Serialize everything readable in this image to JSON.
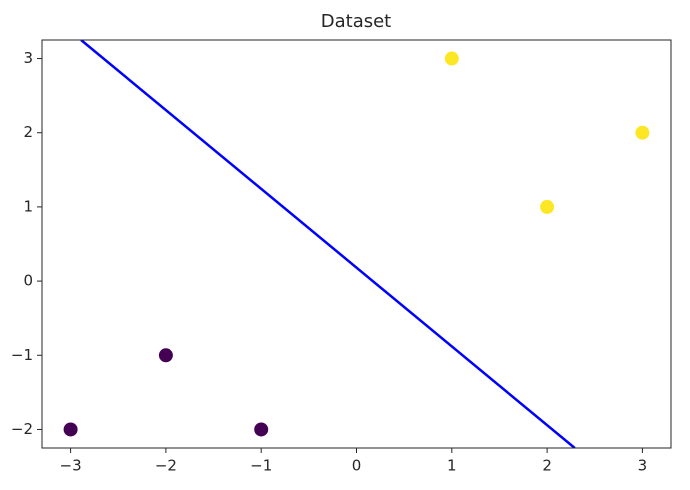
{
  "chart_data": {
    "type": "scatter",
    "title": "Dataset",
    "points": {
      "x": [
        -3,
        -2,
        -1,
        1,
        2,
        3
      ],
      "y": [
        -2,
        -1,
        -2,
        3,
        1,
        2
      ],
      "colors": [
        "#440154",
        "#440154",
        "#440154",
        "#fde725",
        "#fde725",
        "#fde725"
      ]
    },
    "line": {
      "x": [
        -2.89,
        2.29
      ],
      "y": [
        3.25,
        -2.25
      ],
      "color": "#0000ff"
    },
    "xlim": [
      -3.3,
      3.3
    ],
    "ylim": [
      -2.25,
      3.25
    ],
    "xticks": [
      {
        "value": -3,
        "label": "−3"
      },
      {
        "value": -2,
        "label": "−2"
      },
      {
        "value": -1,
        "label": "−1"
      },
      0,
      1,
      2,
      3
    ],
    "yticks": [
      {
        "value": -2,
        "label": "−2"
      },
      {
        "value": -1,
        "label": "−1"
      },
      0,
      1,
      2,
      3
    ],
    "grid": false
  }
}
